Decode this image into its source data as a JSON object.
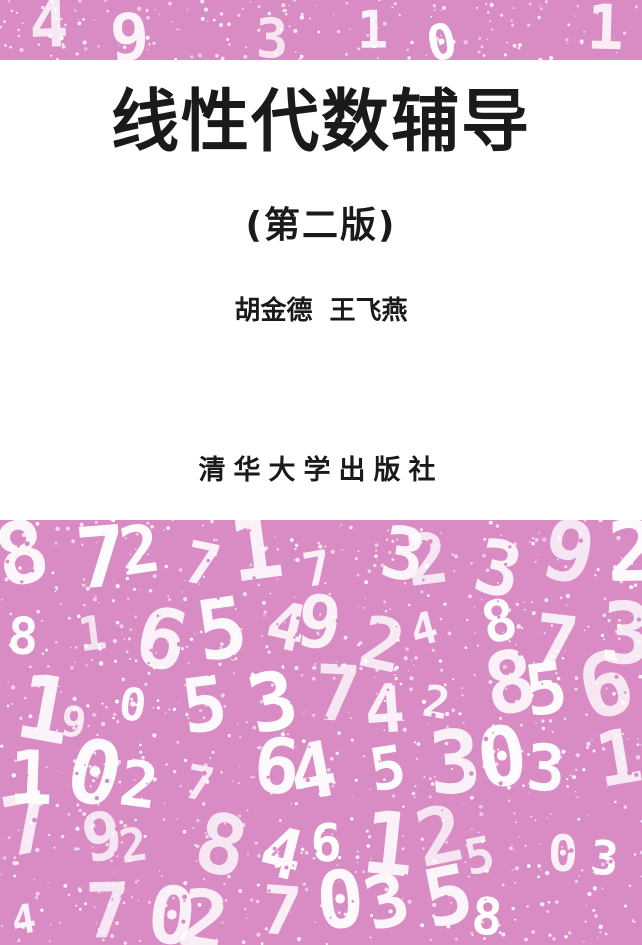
{
  "book": {
    "title": "线性代数辅导",
    "edition": "(第二版)",
    "authors": "胡金德 王飞燕",
    "publisher": "清华大学出版社"
  },
  "colors": {
    "pattern_background": "#d98bc4",
    "digit_color": "#ffffff",
    "text_color": "#1a1a1a"
  },
  "decoration": {
    "type": "scattered-digits-pattern",
    "top_digits": [
      "4",
      "9",
      "3",
      "1",
      "0",
      "1"
    ],
    "bottom_digits": [
      "8",
      "7",
      "2",
      "7",
      "1",
      "7",
      "3",
      "2",
      "3",
      "9",
      "2",
      "8",
      "1",
      "6",
      "5",
      "4",
      "9",
      "2",
      "4",
      "8",
      "7",
      "3",
      "1",
      "9",
      "0",
      "5",
      "3",
      "7",
      "4",
      "2",
      "8",
      "5",
      "6",
      "1",
      "0",
      "2",
      "7",
      "6",
      "4",
      "5",
      "3",
      "0",
      "3",
      "1",
      "7",
      "9",
      "2",
      "8",
      "4",
      "6",
      "1",
      "2",
      "5",
      "0",
      "3",
      "4",
      "7",
      "0",
      "2",
      "7",
      "0",
      "3",
      "5",
      "8"
    ]
  }
}
